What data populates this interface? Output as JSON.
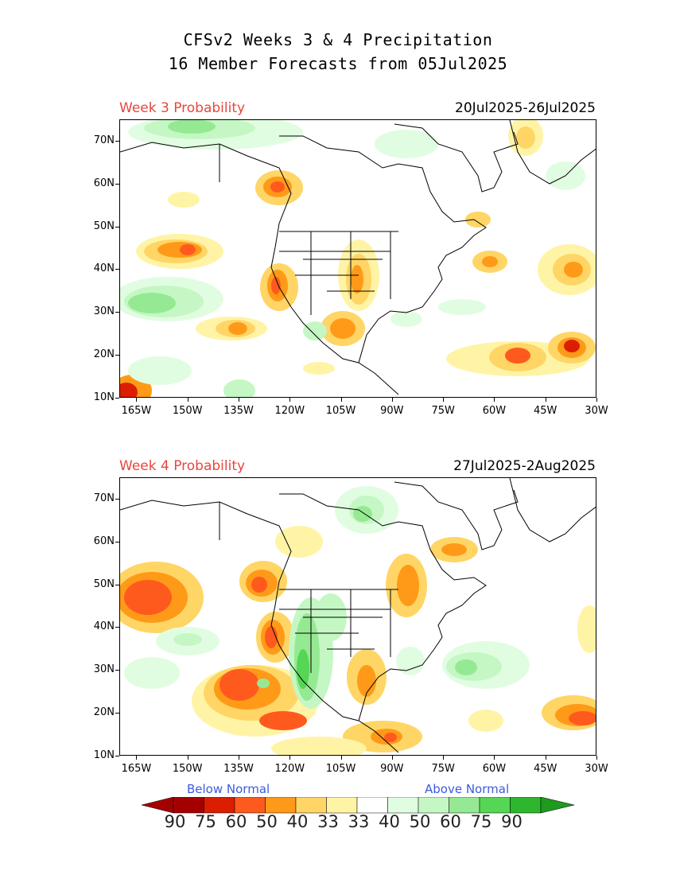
{
  "title_line1": "CFSv2 Weeks 3 & 4 Precipitation",
  "title_line2": "16 Member Forecasts from 05Jul2025",
  "panels": [
    {
      "label": "Week 3 Probability",
      "dates": "20Jul2025-26Jul2025"
    },
    {
      "label": "Week 4 Probability",
      "dates": "27Jul2025-2Aug2025"
    }
  ],
  "lat_labels": [
    "70N",
    "60N",
    "50N",
    "40N",
    "30N",
    "20N",
    "10N"
  ],
  "lat_values": [
    70,
    60,
    50,
    40,
    30,
    20,
    10
  ],
  "lon_labels": [
    "165W",
    "150W",
    "135W",
    "120W",
    "105W",
    "90W",
    "75W",
    "60W",
    "45W",
    "30W"
  ],
  "lon_values": [
    -165,
    -150,
    -135,
    -120,
    -105,
    -90,
    -75,
    -60,
    -45,
    -30
  ],
  "extent": {
    "lon_min": -170,
    "lon_max": -30,
    "lat_min": 10,
    "lat_max": 75
  },
  "legend": {
    "below_label": "Below Normal",
    "above_label": "Above Normal",
    "numbers": [
      "90",
      "75",
      "60",
      "50",
      "40",
      "33",
      "33",
      "40",
      "50",
      "60",
      "75",
      "90"
    ],
    "colors": [
      "#a50000",
      "#dc1e00",
      "#ff5a1e",
      "#ff9a19",
      "#ffd565",
      "#fff4a6",
      "#ffffff",
      "#e1fde1",
      "#c4f7c4",
      "#96e993",
      "#55d655",
      "#2eb72e"
    ],
    "arrow_left_color": "#a50000",
    "arrow_right_color": "#1e9a1e"
  },
  "colors": {
    "below": [
      "#fff4a6",
      "#ffd565",
      "#ff9a19",
      "#ff5a1e",
      "#dc1e00"
    ],
    "above": [
      "#e1fde1",
      "#c4f7c4",
      "#96e993",
      "#55d655"
    ]
  }
}
